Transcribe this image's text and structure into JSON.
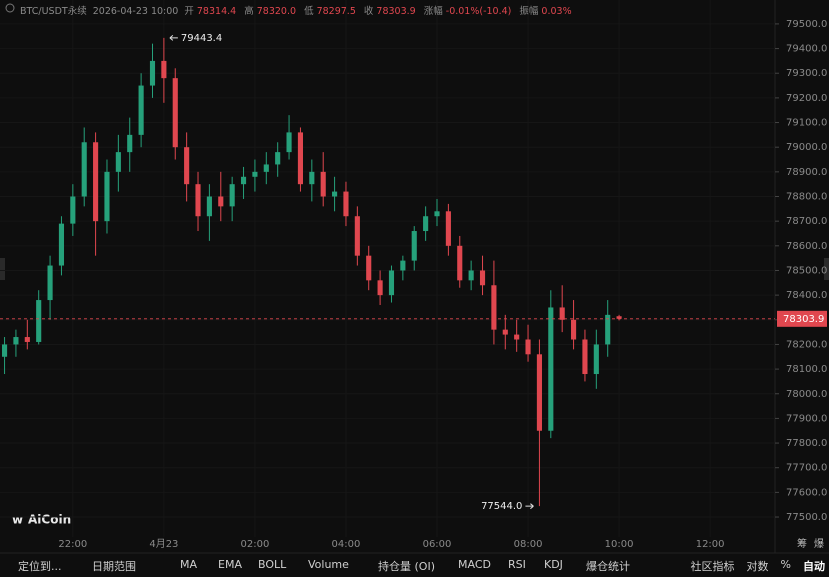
{
  "header": {
    "symbol": "BTC/USDT永续",
    "time": "2026-04-23 10:00",
    "open_label": "开",
    "high_label": "高",
    "low_label": "低",
    "close_label": "收",
    "change_label": "涨幅",
    "change": "-0.01%(-10.4)",
    "amplitude_label": "振幅",
    "amplitude": "0.03%",
    "ohlc_labels": [
      "78314.4",
      "78320.0",
      "78297.5",
      "78303.9"
    ]
  },
  "logo": "AiCoin",
  "corner": [
    "筹",
    "爆"
  ],
  "toolbar": {
    "left": [
      "定位到...",
      "日期范围"
    ],
    "indicators": [
      "MA",
      "EMA",
      "BOLL",
      "Volume",
      "持仓量 (OI)",
      "MACD",
      "RSI",
      "KDJ",
      "爆仓统计"
    ],
    "right": [
      "社区指标",
      "对数",
      "%",
      "自动"
    ]
  },
  "chart_data": {
    "type": "candlestick",
    "series": [
      {
        "name": "BTC/USDT永续",
        "up_color": "#26a17b",
        "down_color": "#e0474f",
        "open": [
          78150,
          78200,
          78230,
          78210,
          78380,
          78520,
          78690,
          78800,
          79020,
          78700,
          78900,
          78980,
          79050,
          79250,
          79350,
          79280,
          79000,
          78850,
          78720,
          78800,
          78760,
          78850,
          78880,
          78900,
          78930,
          78980,
          79060,
          78850,
          78900,
          78800,
          78820,
          78720,
          78560,
          78460,
          78400,
          78500,
          78540,
          78660,
          78720,
          78740,
          78600,
          78460,
          78500,
          78440,
          78260,
          78240,
          78220,
          78160,
          77850,
          78350,
          78300,
          78220,
          78080,
          78200,
          78314.4
        ],
        "high": [
          78230,
          78260,
          78300,
          78420,
          78560,
          78720,
          78850,
          79080,
          79060,
          78950,
          79050,
          79120,
          79300,
          79420,
          79443.4,
          79320,
          79060,
          78900,
          78850,
          78900,
          78880,
          78920,
          78950,
          78980,
          79020,
          79130,
          79080,
          78950,
          78980,
          78880,
          78860,
          78760,
          78600,
          78500,
          78520,
          78560,
          78680,
          78760,
          78790,
          78770,
          78640,
          78540,
          78560,
          78540,
          78320,
          78300,
          78280,
          78220,
          78420,
          78440,
          78380,
          78260,
          78260,
          78380,
          78320
        ],
        "low": [
          78080,
          78150,
          78180,
          78200,
          78300,
          78480,
          78640,
          78760,
          78560,
          78650,
          78820,
          78900,
          79000,
          79200,
          79180,
          78950,
          78780,
          78660,
          78620,
          78700,
          78700,
          78790,
          78820,
          78850,
          78880,
          78950,
          78820,
          78780,
          78760,
          78740,
          78680,
          78520,
          78420,
          78360,
          78370,
          78460,
          78500,
          78620,
          78680,
          78560,
          78430,
          78420,
          78400,
          78200,
          78180,
          78170,
          78130,
          77544,
          77820,
          78250,
          78180,
          78050,
          78020,
          78150,
          78297.5
        ],
        "close": [
          78200,
          78230,
          78210,
          78380,
          78520,
          78690,
          78800,
          79020,
          78700,
          78900,
          78980,
          79050,
          79250,
          79350,
          79280,
          79000,
          78850,
          78720,
          78800,
          78760,
          78850,
          78880,
          78900,
          78930,
          78980,
          79060,
          78850,
          78900,
          78800,
          78820,
          78720,
          78560,
          78460,
          78400,
          78500,
          78540,
          78660,
          78720,
          78740,
          78600,
          78460,
          78500,
          78440,
          78260,
          78240,
          78220,
          78160,
          77850,
          78350,
          78300,
          78220,
          78080,
          78200,
          78320,
          78303.9
        ],
        "low_annotation": "77544.0"
      }
    ],
    "xlim": [
      -0.4,
      67.7
    ],
    "xticks": [
      {
        "value": 6,
        "label": "22:00"
      },
      {
        "value": 14,
        "label": "4月23"
      },
      {
        "value": 22,
        "label": "02:00"
      },
      {
        "value": 30,
        "label": "04:00"
      },
      {
        "value": 38,
        "label": "06:00"
      },
      {
        "value": 46,
        "label": "08:00"
      },
      {
        "value": 54,
        "label": "10:00"
      },
      {
        "value": 62,
        "label": "12:00"
      }
    ],
    "ylim": [
      77419,
      79597
    ],
    "yticks": [
      {
        "value": 77500,
        "label": "77500.0"
      },
      {
        "value": 77600,
        "label": "77600.0"
      },
      {
        "value": 77700,
        "label": "77700.0"
      },
      {
        "value": 77800,
        "label": "77800.0"
      },
      {
        "value": 77900,
        "label": "77900.0"
      },
      {
        "value": 78000,
        "label": "78000.0"
      },
      {
        "value": 78100,
        "label": "78100.0"
      },
      {
        "value": 78200,
        "label": "78200.0"
      },
      {
        "value": 78300,
        "label": "78300.0"
      },
      {
        "value": 78400,
        "label": "78400.0"
      },
      {
        "value": 78500,
        "label": "78500.0"
      },
      {
        "value": 78600,
        "label": "78600.0"
      },
      {
        "value": 78700,
        "label": "78700.0"
      },
      {
        "value": 78800,
        "label": "78800.0"
      },
      {
        "value": 78900,
        "label": "78900.0"
      },
      {
        "value": 79000,
        "label": "79000.0"
      },
      {
        "value": 79100,
        "label": "79100.0"
      },
      {
        "value": 79200,
        "label": "79200.0"
      },
      {
        "value": 79300,
        "label": "79300.0"
      },
      {
        "value": 79400,
        "label": "79400.0"
      },
      {
        "value": 79500,
        "label": "79500.0"
      }
    ],
    "grid": true
  }
}
